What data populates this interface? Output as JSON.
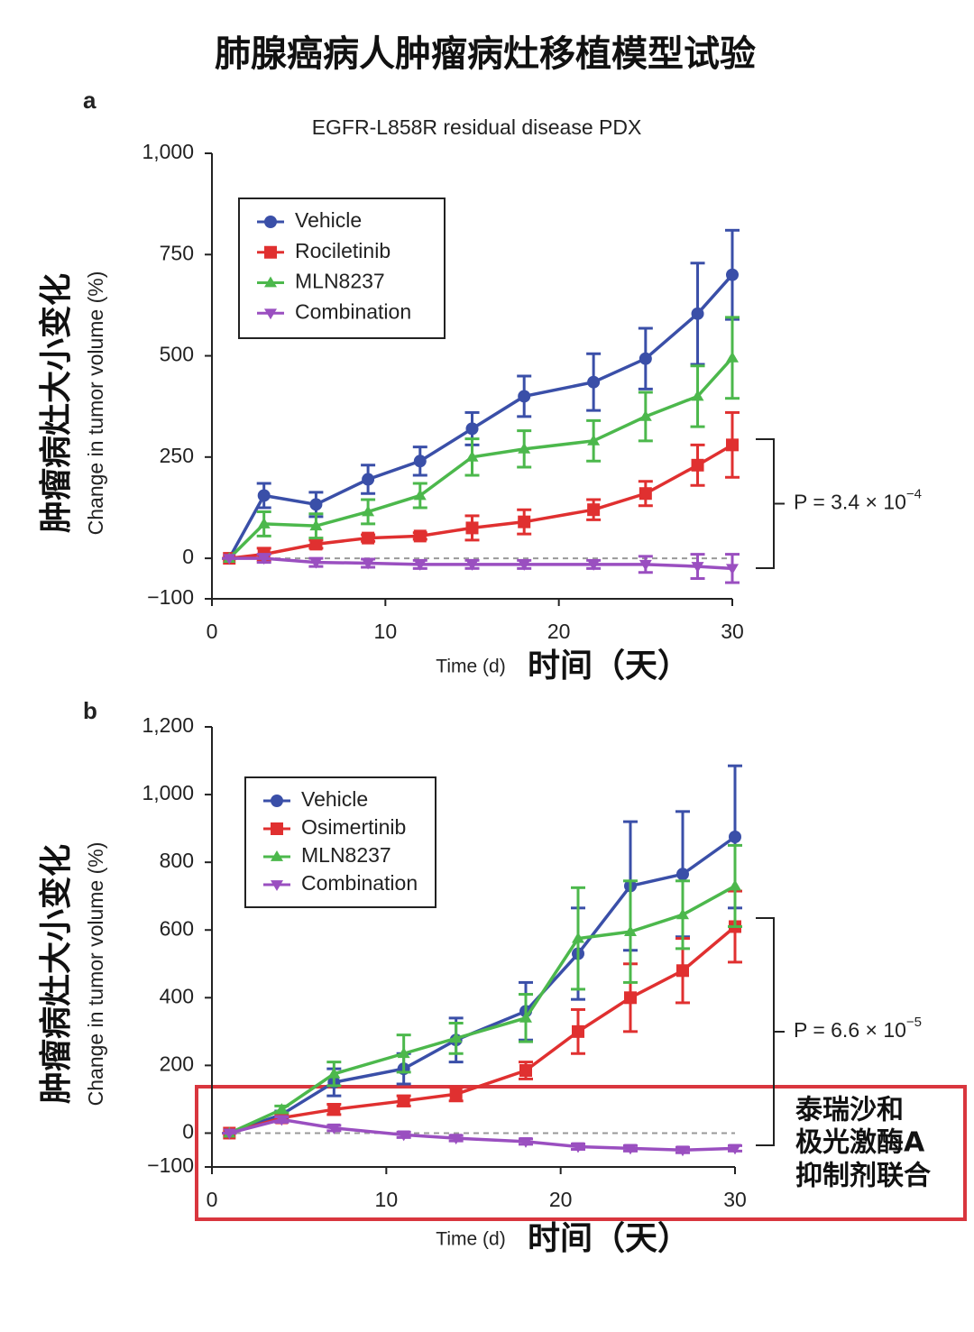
{
  "title": "肺腺癌病人肿瘤病灶移植模型试验",
  "note": [
    "泰瑞沙和",
    "极光激酶A",
    "抑制剂联合"
  ],
  "chart_data": [
    {
      "type": "line",
      "panel": "a",
      "title": "EGFR-L858R residual disease PDX",
      "y_label": "Change in tumor volume (%)",
      "y_label_cn": "肿瘤病灶大小变化",
      "x_label": "Time (d)",
      "x_label_cn": "时间（天）",
      "annotation": {
        "text": "P = 3.4 × 10",
        "exponent": "−4"
      },
      "x": [
        1,
        3,
        6,
        9,
        12,
        15,
        18,
        22,
        25,
        28,
        30
      ],
      "xlim": [
        0,
        30
      ],
      "xticks": [
        0,
        10,
        20,
        30
      ],
      "ylim": [
        -100,
        1000
      ],
      "yticks": [
        {
          "value": -100,
          "label": "−100"
        },
        0,
        250,
        500,
        750,
        {
          "value": 1000,
          "label": "1,000"
        }
      ],
      "series": [
        {
          "name": "Vehicle",
          "color": "#3a4fa8",
          "marker": "circle",
          "values": [
            0,
            155,
            133,
            195,
            240,
            320,
            400,
            435,
            493,
            604,
            700
          ],
          "errors": [
            0,
            30,
            30,
            35,
            35,
            40,
            50,
            70,
            75,
            125,
            110
          ]
        },
        {
          "name": "Rociletinib",
          "color": "#e03030",
          "marker": "square",
          "values": [
            0,
            10,
            35,
            50,
            55,
            75,
            90,
            120,
            160,
            230,
            280
          ],
          "errors": [
            0,
            15,
            10,
            8,
            8,
            30,
            30,
            25,
            30,
            50,
            80
          ]
        },
        {
          "name": "MLN8237",
          "color": "#4cb84c",
          "marker": "triangle-up",
          "values": [
            0,
            85,
            80,
            115,
            155,
            250,
            270,
            290,
            350,
            400,
            495
          ],
          "errors": [
            0,
            30,
            30,
            30,
            30,
            45,
            45,
            50,
            60,
            75,
            100
          ]
        },
        {
          "name": "Combination",
          "color": "#9a4fc0",
          "marker": "triangle-down",
          "values": [
            0,
            0,
            -10,
            -12,
            -15,
            -15,
            -15,
            -15,
            -15,
            -20,
            -25
          ],
          "errors": [
            0,
            10,
            10,
            10,
            10,
            10,
            10,
            10,
            20,
            30,
            35
          ]
        }
      ]
    },
    {
      "type": "line",
      "panel": "b",
      "y_label": "Change in tumor volume (%)",
      "y_label_cn": "肿瘤病灶大小变化",
      "x_label": "Time (d)",
      "x_label_cn": "时间（天）",
      "annotation": {
        "text": "P = 6.6 × 10",
        "exponent": "−5"
      },
      "x": [
        1,
        4,
        7,
        11,
        14,
        18,
        21,
        24,
        27,
        30
      ],
      "xlim": [
        0,
        30
      ],
      "xticks": [
        0,
        10,
        20,
        30
      ],
      "ylim": [
        -100,
        1200
      ],
      "yticks": [
        {
          "value": -100,
          "label": "−100"
        },
        0,
        200,
        400,
        600,
        800,
        {
          "value": 1000,
          "label": "1,000"
        },
        {
          "value": 1200,
          "label": "1,200"
        }
      ],
      "series": [
        {
          "name": "Vehicle",
          "color": "#3a4fa8",
          "marker": "circle",
          "values": [
            0,
            55,
            150,
            190,
            275,
            360,
            530,
            730,
            765,
            875
          ],
          "errors": [
            0,
            10,
            40,
            45,
            65,
            85,
            135,
            190,
            185,
            210
          ]
        },
        {
          "name": "Osimertinib",
          "color": "#e03030",
          "marker": "square",
          "values": [
            0,
            45,
            70,
            95,
            115,
            185,
            300,
            400,
            480,
            610
          ],
          "errors": [
            0,
            10,
            15,
            15,
            20,
            25,
            65,
            100,
            95,
            105
          ]
        },
        {
          "name": "MLN8237",
          "color": "#4cb84c",
          "marker": "triangle-up",
          "values": [
            0,
            70,
            175,
            235,
            280,
            340,
            575,
            595,
            645,
            730
          ],
          "errors": [
            0,
            10,
            35,
            55,
            45,
            70,
            150,
            150,
            100,
            120
          ]
        },
        {
          "name": "Combination",
          "color": "#9a4fc0",
          "marker": "triangle-down",
          "values": [
            0,
            40,
            15,
            -5,
            -15,
            -25,
            -40,
            -45,
            -50,
            -45
          ],
          "errors": [
            0,
            8,
            8,
            8,
            8,
            8,
            8,
            8,
            8,
            8
          ]
        }
      ]
    }
  ]
}
